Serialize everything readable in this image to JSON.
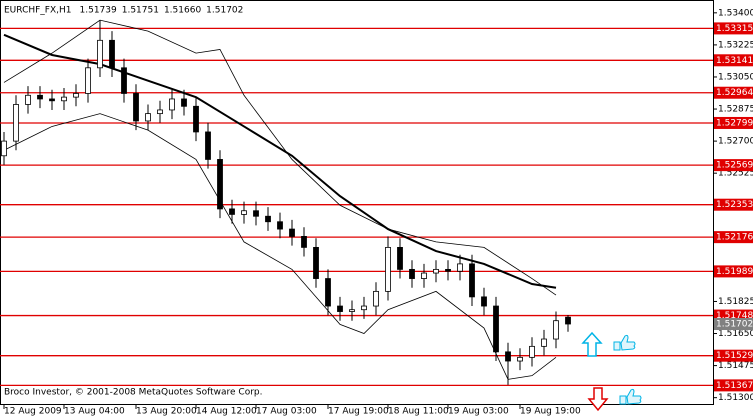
{
  "chart_data": {
    "type": "candlestick",
    "title": "EURCHF_FX,H1",
    "quote": [
      1.51739,
      1.51751,
      {
        "value": 1.5166,
        "label": "1.51660"
      },
      1.51702
    ],
    "footnote": "Broco Investor, © 2001-2008 MetaQuotes Software Corp.",
    "categories": [
      "12 Aug 2009",
      null,
      null,
      null,
      null,
      "13 Aug 04:00",
      null,
      null,
      null,
      null,
      null,
      "13 Aug 20:00",
      null,
      null,
      null,
      null,
      "14 Aug 12:00",
      null,
      null,
      null,
      null,
      "17 Aug 03:00",
      null,
      null,
      null,
      null,
      null,
      "17 Aug 19:00",
      null,
      null,
      null,
      null,
      "18 Aug 11:00",
      null,
      null,
      null,
      null,
      "19 Aug 03:00",
      null,
      null,
      null,
      null,
      null,
      "19 Aug 19:00",
      null,
      null,
      null,
      null
    ],
    "open": [
      1.5262,
      1.527,
      1.529,
      1.5295,
      1.5293,
      1.5292,
      1.5294,
      1.5296,
      1.531,
      1.5325,
      1.531,
      1.5296,
      1.5281,
      1.5285,
      1.5287,
      1.5293,
      1.5289,
      1.5275,
      1.526,
      1.5233,
      1.523,
      1.5232,
      1.5229,
      1.5226,
      1.5222,
      1.5218,
      1.5212,
      1.5195,
      1.518,
      1.5177,
      1.5178,
      1.518,
      1.5188,
      1.5212,
      1.52,
      1.5195,
      1.5198,
      1.52,
      1.5199,
      1.5203,
      1.5185,
      1.518,
      1.5155,
      1.515,
      1.5152,
      1.5158,
      1.5162,
      1.51739
    ],
    "high": [
      1.5275,
      1.5295,
      1.53,
      1.53,
      1.5298,
      1.5299,
      1.5301,
      1.5315,
      1.5336,
      1.533,
      1.5315,
      1.5301,
      1.529,
      1.5292,
      1.5298,
      1.5298,
      1.5294,
      1.528,
      1.5265,
      1.5238,
      1.5237,
      1.5237,
      1.5234,
      1.5231,
      1.5227,
      1.5223,
      1.5217,
      1.52,
      1.5185,
      1.5183,
      1.5185,
      1.5193,
      1.5218,
      1.5217,
      1.5205,
      1.5203,
      1.5205,
      1.5205,
      1.5208,
      1.5208,
      1.519,
      1.5185,
      1.516,
      1.5157,
      1.5163,
      1.5167,
      1.5177,
      1.51751
    ],
    "low": [
      1.5257,
      1.5265,
      1.5285,
      1.5288,
      1.5287,
      1.5287,
      1.5289,
      1.5291,
      1.5305,
      1.5305,
      1.5291,
      1.5276,
      1.5276,
      1.528,
      1.5282,
      1.5284,
      1.527,
      1.5255,
      1.5228,
      1.5225,
      1.5225,
      1.5224,
      1.5221,
      1.5217,
      1.5213,
      1.5207,
      1.519,
      1.5175,
      1.5172,
      1.5172,
      1.5173,
      1.5175,
      1.5183,
      1.5195,
      1.519,
      1.519,
      1.5193,
      1.5194,
      1.5194,
      1.518,
      1.5175,
      1.515,
      1.5137,
      1.5145,
      1.5147,
      1.5153,
      1.5157,
      1.5166
    ],
    "close": [
      1.527,
      1.529,
      1.5295,
      1.5293,
      1.5292,
      1.5294,
      1.5296,
      1.531,
      1.5325,
      1.531,
      1.5296,
      1.5281,
      1.5285,
      1.5287,
      1.5293,
      1.5289,
      1.5275,
      1.526,
      1.5233,
      1.523,
      1.5232,
      1.5229,
      1.5226,
      1.5222,
      1.5218,
      1.5212,
      1.5195,
      1.518,
      1.5177,
      1.5178,
      1.518,
      1.5188,
      1.5212,
      1.52,
      1.5195,
      1.5198,
      1.52,
      1.5199,
      1.5203,
      1.5185,
      1.518,
      1.5155,
      1.515,
      1.5152,
      1.5158,
      1.5162,
      1.5172,
      1.51702
    ],
    "indicators": [
      {
        "color": "#000000",
        "width": 2,
        "x": [
          0,
          4,
          8,
          12,
          16,
          20,
          24,
          28,
          32,
          36,
          40,
          44,
          46
        ],
        "values": [
          1.5328,
          1.5317,
          1.5312,
          1.5303,
          1.5294,
          1.5278,
          1.5262,
          1.524,
          1.5222,
          1.521,
          1.5203,
          1.5192,
          1.519
        ]
      },
      {
        "color": "#000000",
        "width": 0.8,
        "x": [
          0,
          4,
          8,
          12,
          16,
          18,
          20,
          24,
          28,
          32,
          36,
          40,
          44,
          46
        ],
        "values": [
          1.5302,
          1.5318,
          1.5336,
          1.533,
          1.5318,
          1.532,
          1.5295,
          1.526,
          1.5235,
          1.5222,
          1.5215,
          1.5212,
          1.5195,
          1.5186
        ]
      },
      {
        "color": "#000000",
        "width": 0.8,
        "x": [
          0,
          4,
          8,
          12,
          16,
          20,
          24,
          28,
          30,
          32,
          36,
          40,
          42,
          44,
          46
        ],
        "values": [
          1.5265,
          1.5278,
          1.5285,
          1.5276,
          1.526,
          1.5215,
          1.52,
          1.517,
          1.5165,
          1.5178,
          1.5188,
          1.5168,
          1.514,
          1.5142,
          1.5152
        ]
      }
    ],
    "levels": [
      1.53315,
      1.53141,
      1.52964,
      1.52799,
      1.52569,
      1.52353,
      1.52176,
      1.51989,
      1.51748,
      1.51529,
      1.51367
    ],
    "level_color": "#e00000",
    "current_price": 1.51702,
    "ylim": [
      1.5126,
      1.5347
    ],
    "yticks": [
      {
        "value": 1.534,
        "label": "1.53400"
      },
      {
        "value": 1.53225,
        "label": "1.53225"
      },
      {
        "value": 1.5305,
        "label": "1.53050"
      },
      {
        "value": 1.52875,
        "label": "1.52875"
      },
      {
        "value": 1.527,
        "label": "1.52700"
      },
      {
        "value": 1.52525,
        "label": "1.52525"
      },
      {
        "value": 1.51825,
        "label": "1.51825"
      },
      {
        "value": 1.5165,
        "label": "1.51650"
      },
      {
        "value": 1.51475,
        "label": "1.51475"
      },
      {
        "value": 1.513,
        "label": "1.51300"
      }
    ]
  }
}
